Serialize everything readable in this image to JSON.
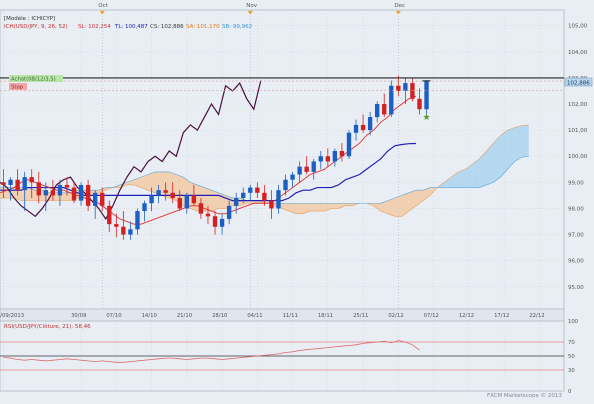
{
  "chart_data": [
    {
      "type": "candlestick",
      "legend_model": "[Modèle : ICHICYP]",
      "legend_ichimoku": "ICH(USD/JPY, 9, 26, 52)",
      "legend_values": [
        {
          "text": "SL: 102,254",
          "color": "#d23434"
        },
        {
          "text": "TL: 100,487",
          "color": "#1f1fb8"
        },
        {
          "text": "CS: 102,886",
          "color": "#3a3a3a"
        },
        {
          "text": "SA: 101,170",
          "color": "#e07818"
        },
        {
          "text": "SB: 99,962",
          "color": "#3c96d2"
        }
      ],
      "months": [
        {
          "label": "Oct",
          "x": 14.5
        },
        {
          "label": "Nov",
          "x": 35.5
        },
        {
          "label": "Dec",
          "x": 56.5
        }
      ],
      "x_ticks": [
        {
          "label": "13/09/2013",
          "x": 0.5
        },
        {
          "label": "30/09",
          "x": 11.5
        },
        {
          "label": "07/10",
          "x": 16.5
        },
        {
          "label": "14/10",
          "x": 21.5
        },
        {
          "label": "21/10",
          "x": 26.5
        },
        {
          "label": "28/10",
          "x": 31.5
        },
        {
          "label": "04/11",
          "x": 36.5
        },
        {
          "label": "11/11",
          "x": 41.5
        },
        {
          "label": "18/11",
          "x": 46.5
        },
        {
          "label": "25/11",
          "x": 51.5
        },
        {
          "label": "02/12",
          "x": 56.5
        },
        {
          "label": "07/12",
          "x": 61.5
        },
        {
          "label": "12/12",
          "x": 66.5
        },
        {
          "label": "17/12",
          "x": 71.5
        },
        {
          "label": "22/12",
          "x": 76.5
        }
      ],
      "y_ticks": [
        95,
        96,
        97,
        98,
        99,
        100,
        101,
        102,
        103,
        104,
        105
      ],
      "ylim": [
        94.15,
        105.6
      ],
      "xlim": [
        0,
        80
      ],
      "last_price_label": "102,886",
      "last_price": 102.886,
      "horizontal_line": 103.0,
      "dotted_levels": [
        102.88,
        102.52
      ],
      "order_labels": [
        "Achat(08/12/3,5)",
        "Stop"
      ],
      "candles": [
        {
          "o": 99.0,
          "h": 99.5,
          "l": 98.4,
          "c": 98.9
        },
        {
          "o": 98.9,
          "h": 99.2,
          "l": 98.3,
          "c": 99.1
        },
        {
          "o": 99.1,
          "h": 99.5,
          "l": 98.5,
          "c": 98.7
        },
        {
          "o": 98.7,
          "h": 99.4,
          "l": 97.9,
          "c": 99.2
        },
        {
          "o": 99.2,
          "h": 99.5,
          "l": 98.4,
          "c": 99.0
        },
        {
          "o": 99.0,
          "h": 99.4,
          "l": 98.2,
          "c": 98.5
        },
        {
          "o": 98.5,
          "h": 99.0,
          "l": 97.9,
          "c": 98.7
        },
        {
          "o": 98.7,
          "h": 99.1,
          "l": 98.3,
          "c": 98.5
        },
        {
          "o": 98.5,
          "h": 99.1,
          "l": 98.1,
          "c": 98.9
        },
        {
          "o": 98.9,
          "h": 99.2,
          "l": 98.5,
          "c": 98.8
        },
        {
          "o": 98.8,
          "h": 99.0,
          "l": 98.2,
          "c": 98.3
        },
        {
          "o": 98.3,
          "h": 99.0,
          "l": 98.1,
          "c": 98.9
        },
        {
          "o": 98.9,
          "h": 99.1,
          "l": 97.9,
          "c": 98.1
        },
        {
          "o": 98.1,
          "h": 98.7,
          "l": 97.6,
          "c": 98.6
        },
        {
          "o": 98.6,
          "h": 98.8,
          "l": 97.9,
          "c": 98.1
        },
        {
          "o": 98.1,
          "h": 98.3,
          "l": 97.1,
          "c": 97.4
        },
        {
          "o": 97.4,
          "h": 97.8,
          "l": 96.9,
          "c": 97.3
        },
        {
          "o": 97.3,
          "h": 97.9,
          "l": 96.8,
          "c": 97.0
        },
        {
          "o": 97.0,
          "h": 97.5,
          "l": 96.8,
          "c": 97.2
        },
        {
          "o": 97.2,
          "h": 98.0,
          "l": 97.0,
          "c": 97.9
        },
        {
          "o": 97.9,
          "h": 98.3,
          "l": 97.5,
          "c": 98.2
        },
        {
          "o": 98.2,
          "h": 98.8,
          "l": 97.9,
          "c": 98.5
        },
        {
          "o": 98.5,
          "h": 98.9,
          "l": 98.2,
          "c": 98.7
        },
        {
          "o": 98.7,
          "h": 99.0,
          "l": 98.3,
          "c": 98.6
        },
        {
          "o": 98.6,
          "h": 99.0,
          "l": 98.2,
          "c": 98.4
        },
        {
          "o": 98.4,
          "h": 98.7,
          "l": 97.9,
          "c": 98.0
        },
        {
          "o": 98.0,
          "h": 98.6,
          "l": 97.8,
          "c": 98.5
        },
        {
          "o": 98.5,
          "h": 98.9,
          "l": 98.1,
          "c": 98.2
        },
        {
          "o": 98.2,
          "h": 98.4,
          "l": 97.6,
          "c": 97.8
        },
        {
          "o": 97.8,
          "h": 98.1,
          "l": 97.4,
          "c": 97.7
        },
        {
          "o": 97.7,
          "h": 97.9,
          "l": 97.0,
          "c": 97.3
        },
        {
          "o": 97.3,
          "h": 97.8,
          "l": 97.0,
          "c": 97.6
        },
        {
          "o": 97.6,
          "h": 98.3,
          "l": 97.4,
          "c": 98.1
        },
        {
          "o": 98.1,
          "h": 98.6,
          "l": 97.8,
          "c": 98.4
        },
        {
          "o": 98.4,
          "h": 98.8,
          "l": 98.2,
          "c": 98.6
        },
        {
          "o": 98.6,
          "h": 98.9,
          "l": 98.3,
          "c": 98.8
        },
        {
          "o": 98.8,
          "h": 99.0,
          "l": 98.4,
          "c": 98.6
        },
        {
          "o": 98.6,
          "h": 98.9,
          "l": 98.1,
          "c": 98.3
        },
        {
          "o": 98.3,
          "h": 98.7,
          "l": 97.6,
          "c": 98.0
        },
        {
          "o": 98.0,
          "h": 98.9,
          "l": 97.8,
          "c": 98.7
        },
        {
          "o": 98.7,
          "h": 99.3,
          "l": 98.5,
          "c": 99.1
        },
        {
          "o": 99.1,
          "h": 99.4,
          "l": 98.8,
          "c": 99.3
        },
        {
          "o": 99.3,
          "h": 99.8,
          "l": 99.0,
          "c": 99.6
        },
        {
          "o": 99.6,
          "h": 100.0,
          "l": 99.3,
          "c": 99.4
        },
        {
          "o": 99.4,
          "h": 99.9,
          "l": 99.1,
          "c": 99.8
        },
        {
          "o": 99.8,
          "h": 100.2,
          "l": 99.5,
          "c": 100.0
        },
        {
          "o": 100.0,
          "h": 100.3,
          "l": 99.6,
          "c": 99.8
        },
        {
          "o": 99.8,
          "h": 100.3,
          "l": 99.6,
          "c": 100.2
        },
        {
          "o": 100.2,
          "h": 100.5,
          "l": 99.8,
          "c": 100.0
        },
        {
          "o": 100.0,
          "h": 101.0,
          "l": 99.9,
          "c": 100.9
        },
        {
          "o": 100.9,
          "h": 101.4,
          "l": 100.6,
          "c": 101.2
        },
        {
          "o": 101.2,
          "h": 101.6,
          "l": 100.9,
          "c": 101.0
        },
        {
          "o": 101.0,
          "h": 101.7,
          "l": 100.8,
          "c": 101.5
        },
        {
          "o": 101.5,
          "h": 102.1,
          "l": 101.3,
          "c": 102.0
        },
        {
          "o": 102.0,
          "h": 102.4,
          "l": 101.5,
          "c": 101.6
        },
        {
          "o": 101.6,
          "h": 102.9,
          "l": 101.5,
          "c": 102.7
        },
        {
          "o": 102.7,
          "h": 103.1,
          "l": 102.3,
          "c": 102.5
        },
        {
          "o": 102.5,
          "h": 103.0,
          "l": 102.0,
          "c": 102.8
        },
        {
          "o": 102.8,
          "h": 103.0,
          "l": 102.1,
          "c": 102.2
        },
        {
          "o": 102.2,
          "h": 102.6,
          "l": 101.6,
          "c": 101.8
        },
        {
          "o": 101.8,
          "h": 102.9,
          "l": 101.6,
          "c": 102.9
        }
      ],
      "tenkan_sen": [
        98.6,
        98.7,
        98.8,
        99.0,
        99.1,
        99.0,
        98.9,
        98.8,
        98.7,
        98.7,
        98.6,
        98.5,
        98.4,
        98.3,
        98.2,
        98.0,
        97.8,
        97.6,
        97.5,
        97.4,
        97.4,
        97.5,
        97.6,
        97.7,
        97.8,
        97.9,
        98.0,
        98.1,
        98.1,
        98.0,
        97.9,
        97.8,
        97.8,
        97.9,
        98.0,
        98.1,
        98.2,
        98.2,
        98.2,
        98.3,
        98.5,
        98.7,
        98.9,
        99.1,
        99.3,
        99.4,
        99.5,
        99.7,
        99.9,
        100.1,
        100.3,
        100.5,
        100.8,
        101.0,
        101.3,
        101.5,
        101.8,
        102.0,
        102.2,
        102.3
      ],
      "kijun_sen": [
        98.7,
        98.7,
        98.7,
        98.7,
        98.8,
        98.8,
        98.8,
        98.8,
        98.8,
        98.8,
        98.7,
        98.6,
        98.5,
        98.5,
        98.5,
        98.5,
        98.5,
        98.5,
        98.5,
        98.5,
        98.5,
        98.5,
        98.5,
        98.5,
        98.5,
        98.5,
        98.5,
        98.5,
        98.5,
        98.5,
        98.5,
        98.5,
        98.4,
        98.3,
        98.3,
        98.3,
        98.3,
        98.3,
        98.3,
        98.3,
        98.3,
        98.4,
        98.6,
        98.7,
        98.7,
        98.8,
        98.8,
        98.8,
        98.9,
        99.1,
        99.2,
        99.3,
        99.5,
        99.7,
        99.9,
        100.2,
        100.4,
        100.45,
        100.48,
        100.487
      ],
      "chikou_span": [
        99.0,
        98.8,
        98.4,
        98.1,
        97.9,
        97.7,
        98.0,
        98.4,
        98.9,
        99.1,
        99.2,
        98.8,
        98.6,
        98.3,
        98.0,
        97.6,
        98.1,
        98.7,
        99.2,
        99.6,
        99.4,
        99.8,
        100.0,
        99.8,
        100.2,
        100.0,
        100.9,
        101.2,
        101.0,
        101.5,
        102.0,
        101.6,
        102.7,
        102.5,
        102.8,
        102.2,
        101.8,
        102.9
      ],
      "senkou_a": [
        98.4,
        98.4,
        98.4,
        98.3,
        98.3,
        98.3,
        98.3,
        98.3,
        98.3,
        98.3,
        98.3,
        98.4,
        98.4,
        98.5,
        98.6,
        98.7,
        98.8,
        98.8,
        98.9,
        98.9,
        98.8,
        98.7,
        98.6,
        98.5,
        98.4,
        98.3,
        98.1,
        98.0,
        97.9,
        97.9,
        97.9,
        98.0,
        98.0,
        98.1,
        98.1,
        98.2,
        98.2,
        98.2,
        98.2,
        98.1,
        98.0,
        97.9,
        97.8,
        97.8,
        97.9,
        97.9,
        97.9,
        98.0,
        98.0,
        98.1,
        98.1,
        98.2,
        98.2,
        98.1,
        97.9,
        97.8,
        97.7,
        97.7,
        97.9,
        98.1,
        98.3,
        98.5,
        98.8,
        99.0,
        99.2,
        99.4,
        99.5,
        99.7,
        99.9,
        100.2,
        100.5,
        100.8,
        101.0,
        101.1,
        101.17,
        101.2
      ],
      "senkou_b": [
        98.8,
        98.8,
        98.8,
        98.8,
        98.8,
        98.7,
        98.7,
        98.6,
        98.6,
        98.6,
        98.6,
        98.7,
        98.7,
        98.7,
        98.7,
        98.8,
        98.8,
        98.9,
        99.0,
        99.1,
        99.2,
        99.3,
        99.4,
        99.4,
        99.4,
        99.3,
        99.2,
        99.0,
        98.9,
        98.8,
        98.7,
        98.6,
        98.5,
        98.4,
        98.4,
        98.3,
        98.3,
        98.3,
        98.2,
        98.2,
        98.2,
        98.2,
        98.2,
        98.2,
        98.2,
        98.2,
        98.2,
        98.2,
        98.2,
        98.2,
        98.2,
        98.2,
        98.2,
        98.2,
        98.2,
        98.3,
        98.4,
        98.5,
        98.6,
        98.7,
        98.7,
        98.8,
        98.8,
        98.8,
        98.8,
        98.8,
        98.8,
        98.8,
        98.8,
        98.9,
        99.0,
        99.2,
        99.5,
        99.8,
        99.96,
        100.0
      ],
      "rsi_panel": {
        "label": "RSI(USD/JPY/Clôture, 21): 58,46",
        "ylim": [
          0,
          100
        ],
        "ticks": [
          0,
          30,
          50,
          70,
          100
        ],
        "bands": [
          30,
          50,
          70
        ],
        "values": [
          48,
          47,
          45,
          44,
          45,
          44,
          43,
          44,
          45,
          46,
          45,
          44,
          43,
          42,
          43,
          42,
          41,
          41,
          42,
          43,
          44,
          45,
          46,
          47,
          47,
          46,
          45,
          46,
          47,
          47,
          46,
          45,
          46,
          47,
          48,
          49,
          50,
          51,
          52,
          53,
          55,
          56,
          58,
          59,
          60,
          61,
          62,
          63,
          64,
          65,
          66,
          68,
          69,
          70,
          71,
          69,
          72,
          70,
          66,
          58.46
        ]
      },
      "watermark": "FXCM Marketscope © 2013"
    }
  ]
}
